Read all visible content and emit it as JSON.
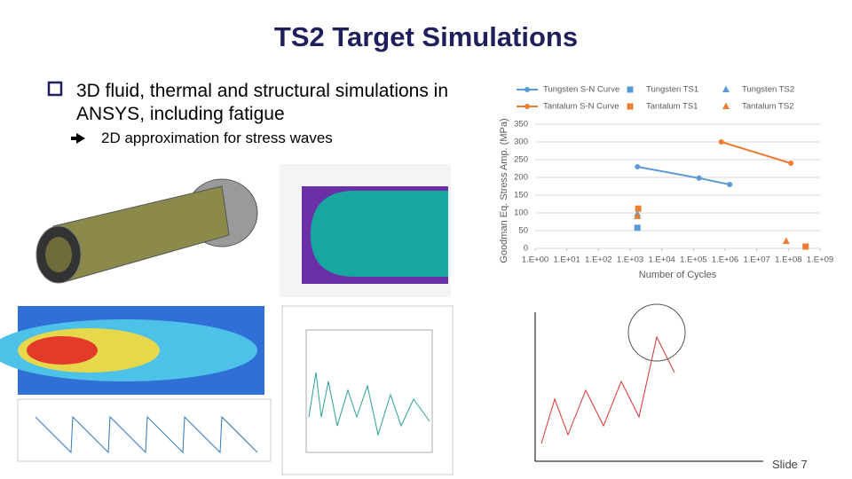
{
  "title": "TS2 Target Simulations",
  "bullets": [
    {
      "text": "3D fluid, thermal and structural simulations in ANSYS, including fatigue",
      "sub": [
        "2D approximation for stress waves"
      ]
    }
  ],
  "slide_number": "Slide 7",
  "chart_data": {
    "type": "scatter",
    "x_label": "Number of Cycles",
    "y_label": "Goodman Eq. Stress Amp. (MPa)",
    "xscale": "log",
    "xlim": [
      1,
      1000000000
    ],
    "xticks": [
      {
        "value": 1,
        "label": "1.E+00"
      },
      {
        "value": 10,
        "label": "1.E+01"
      },
      {
        "value": 100,
        "label": "1.E+02"
      },
      {
        "value": 1000,
        "label": "1.E+03"
      },
      {
        "value": 10000,
        "label": "1.E+04"
      },
      {
        "value": 100000,
        "label": "1.E+05"
      },
      {
        "value": 1000000,
        "label": "1.E+06"
      },
      {
        "value": 10000000,
        "label": "1.E+07"
      },
      {
        "value": 100000000,
        "label": "1.E+08"
      },
      {
        "value": 1000000000,
        "label": "1.E+09"
      }
    ],
    "ylim": [
      0,
      350
    ],
    "yticks": [
      0,
      50,
      100,
      150,
      200,
      250,
      300,
      350
    ],
    "grid": true,
    "legend": "top",
    "series": [
      {
        "name": "Tungsten S-N Curve",
        "color": "#5b9bd5",
        "marker": "circle",
        "line": true,
        "x": [
          1700,
          150000,
          1400000
        ],
        "values": [
          230,
          198,
          180
        ]
      },
      {
        "name": "Tungsten TS1",
        "color": "#5b9bd5",
        "marker": "square",
        "line": false,
        "x": [
          1700
        ],
        "values": [
          58
        ]
      },
      {
        "name": "Tungsten TS2",
        "color": "#5b9bd5",
        "marker": "triangle",
        "line": false,
        "x": [
          1700
        ],
        "values": [
          97
        ]
      },
      {
        "name": "Tantalum S-N Curve",
        "color": "#ed7d31",
        "marker": "circle",
        "line": true,
        "x": [
          760000,
          120000000
        ],
        "values": [
          300,
          240
        ]
      },
      {
        "name": "Tantalum TS1",
        "color": "#ed7d31",
        "marker": "square",
        "line": false,
        "x": [
          1800,
          350000000
        ],
        "values": [
          112,
          5
        ]
      },
      {
        "name": "Tantalum TS2",
        "color": "#ed7d31",
        "marker": "triangle",
        "line": false,
        "x": [
          1700,
          85000000
        ],
        "values": [
          90,
          20
        ]
      }
    ]
  }
}
